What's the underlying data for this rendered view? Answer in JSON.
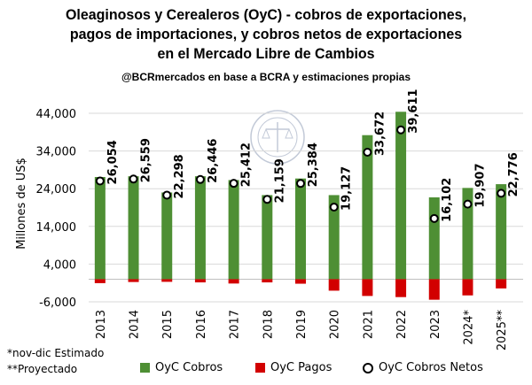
{
  "title_lines": [
    "Oleaginosos y Cerealeros (OyC) - cobros de exportaciones,",
    "pagos de importaciones, y cobros netos de exportaciones",
    "en el Mercado Libre de Cambios"
  ],
  "subtitle": "@BCRmercados en base a BCRA y estimaciones propias",
  "notes": [
    "*nov-dic Estimado",
    "**Proyectado"
  ],
  "legend": {
    "cobros": "OyC Cobros",
    "pagos": "OyC Pagos",
    "netos": "OyC Cobros Netos"
  },
  "colors": {
    "cobros": "#4e8f34",
    "pagos": "#d20000",
    "netos_fill": "#ffffff",
    "netos_stroke": "#000000"
  },
  "chart_data": {
    "type": "bar",
    "ylabel": "Millones de US$",
    "ylim": [
      -6000,
      44000
    ],
    "yticks": [
      "44,000",
      "34,000",
      "24,000",
      "14,000",
      "4,000",
      "-6,000"
    ],
    "ytick_values": [
      44000,
      34000,
      24000,
      14000,
      4000,
      -6000
    ],
    "categories": [
      "2013",
      "2014",
      "2015",
      "2016",
      "2017",
      "2018",
      "2019",
      "2020",
      "2021",
      "2022",
      "2023",
      "2024*",
      "2025**"
    ],
    "series": [
      {
        "name": "OyC Cobros",
        "values": [
          27100,
          27300,
          23000,
          27300,
          26300,
          22300,
          26700,
          22300,
          38200,
          44400,
          21700,
          24200,
          25200
        ]
      },
      {
        "name": "OyC Pagos",
        "values": [
          -1050,
          -750,
          -700,
          -850,
          -1150,
          -850,
          -1200,
          -3050,
          -4450,
          -4750,
          -5450,
          -4300,
          -2450
        ]
      },
      {
        "name": "OyC Cobros Netos",
        "values": [
          26054,
          26559,
          22298,
          26446,
          25412,
          21159,
          25384,
          19127,
          33672,
          39611,
          16102,
          19907,
          22776
        ]
      }
    ],
    "data_labels": [
      "26,054",
      "26,559",
      "22,298",
      "26,446",
      "25,412",
      "21,159",
      "25,384",
      "19,127",
      "33,672",
      "39,611",
      "16,102",
      "19,907",
      "22,776"
    ]
  }
}
